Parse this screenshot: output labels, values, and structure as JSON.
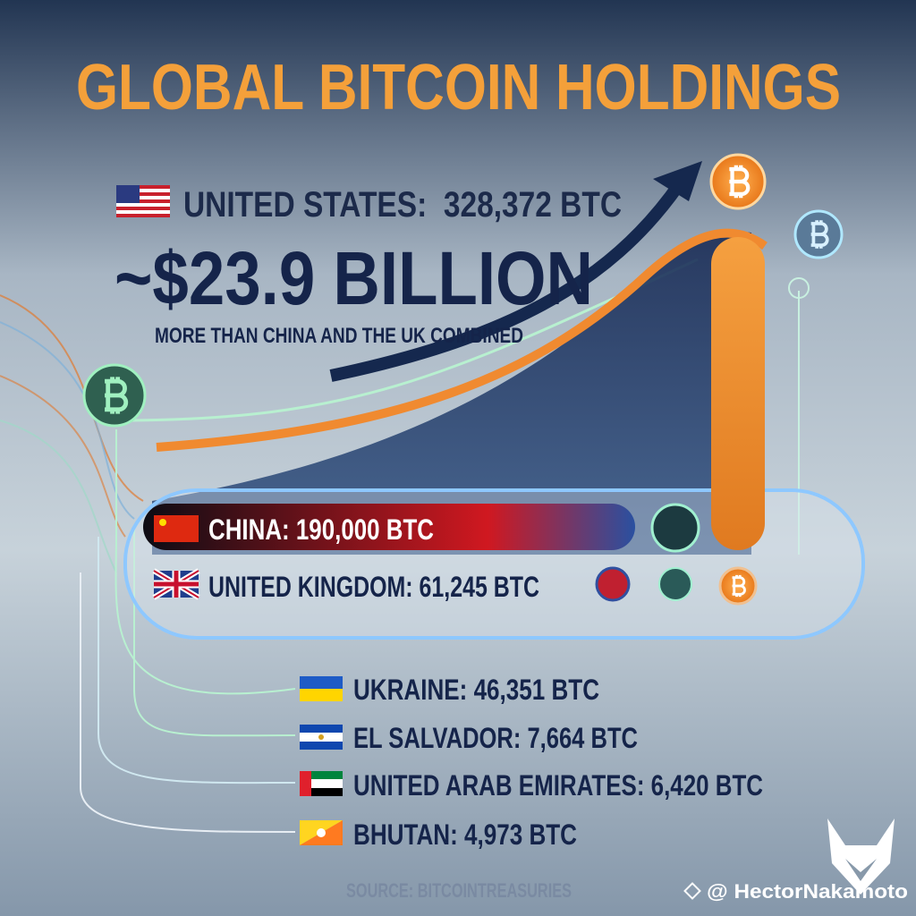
{
  "header": {
    "title": "GLOBAL BITCOIN HOLDINGS"
  },
  "highlight": {
    "country": "UNITED STATES:  328,372 BTC",
    "value": "~$23.9 BILLION",
    "note": "MORE THAN CHINA AND THE UK COMBINED"
  },
  "countries": [
    {
      "label": "CHINA: 190,000 BTC"
    },
    {
      "label": "UNITED KINGDOM: 61,245 BTC"
    },
    {
      "label": "UKRAINE: 46,351 BTC"
    },
    {
      "label": "EL SALVADOR: 7,664 BTC"
    },
    {
      "label": "UNITED ARAB EMIRATES: 6,420 BTC"
    },
    {
      "label": "BHUTAN: 4,973 BTC"
    }
  ],
  "footer": {
    "source": "SOURCE: BITCOINTREASURIES",
    "handle": "@ HectorNakamoto"
  }
}
